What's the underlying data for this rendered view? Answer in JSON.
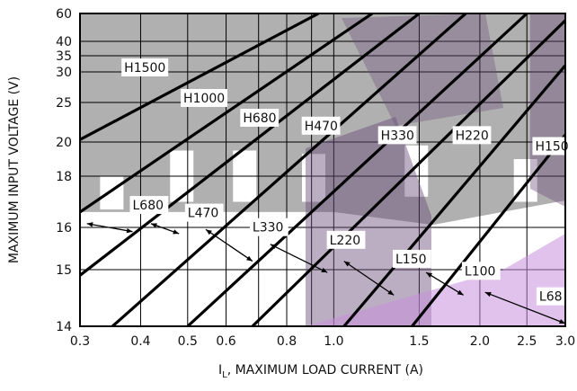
{
  "chart_data": {
    "type": "line",
    "xlabel_prefix": "I",
    "xlabel_sub": "L",
    "xlabel_rest": ", MAXIMUM LOAD CURRENT (A)",
    "ylabel": "MAXIMUM INPUT VOLTAGE (V)",
    "x_scale": "log",
    "y_scale": "custom-nonlinear",
    "xlim": [
      0.3,
      3.0
    ],
    "ylim": [
      14,
      60
    ],
    "x_ticks": [
      {
        "value": 0.3,
        "label": "0.3"
      },
      {
        "value": 0.4,
        "label": "0.4"
      },
      {
        "value": 0.5,
        "label": "0.5"
      },
      {
        "value": 0.6,
        "label": "0.6"
      },
      {
        "value": 0.8,
        "label": "0.8"
      },
      {
        "value": 1.0,
        "label": "1.0"
      },
      {
        "value": 1.5,
        "label": "1.5"
      },
      {
        "value": 2.0,
        "label": "2.0"
      },
      {
        "value": 2.5,
        "label": "2.5"
      },
      {
        "value": 3.0,
        "label": "3.0"
      }
    ],
    "x_minor_grid": [
      0.7,
      0.9
    ],
    "y_ticks": [
      {
        "value": 14,
        "label": "14"
      },
      {
        "value": 15,
        "label": "15"
      },
      {
        "value": 16,
        "label": "16"
      },
      {
        "value": 18,
        "label": "18"
      },
      {
        "value": 20,
        "label": "20"
      },
      {
        "value": 25,
        "label": "25"
      },
      {
        "value": 30,
        "label": "30"
      },
      {
        "value": 35,
        "label": "35"
      },
      {
        "value": 40,
        "label": "40"
      },
      {
        "value": 60,
        "label": "60"
      }
    ],
    "grid": true,
    "shaded_region": {
      "description_value": "H inductor region above boundary",
      "boundary_voltage_left": 16.6
    },
    "series": [
      {
        "name": "H1500",
        "values_xy": [
          [
            0.3,
            20.3
          ],
          [
            0.93,
            60
          ]
        ]
      },
      {
        "name": "H1000",
        "values_xy": [
          [
            0.3,
            16.6
          ],
          [
            1.2,
            60
          ]
        ]
      },
      {
        "name": "H680",
        "values_xy": [
          [
            0.3,
            14.9
          ],
          [
            1.5,
            60
          ]
        ]
      },
      {
        "name": "H470",
        "values_xy": [
          [
            0.35,
            14
          ],
          [
            1.87,
            60
          ]
        ]
      },
      {
        "name": "H330",
        "values_xy": [
          [
            0.5,
            14
          ],
          [
            2.5,
            60
          ]
        ]
      },
      {
        "name": "H220",
        "values_xy": [
          [
            0.68,
            14
          ],
          [
            3.0,
            55
          ]
        ]
      },
      {
        "name": "H150",
        "values_xy": [
          [
            1.05,
            14
          ],
          [
            3.0,
            32
          ]
        ]
      },
      {
        "name": "L68",
        "values_xy": [
          [
            1.45,
            14
          ],
          [
            3.0,
            20.9
          ]
        ]
      }
    ],
    "labels": [
      {
        "text": "H1500",
        "x": 0.37,
        "y": 30
      },
      {
        "text": "H1000",
        "x": 0.49,
        "y": 25
      },
      {
        "text": "H680",
        "x": 0.65,
        "y": 22.5
      },
      {
        "text": "H470",
        "x": 0.87,
        "y": 21.5
      },
      {
        "text": "H330",
        "x": 1.25,
        "y": 20.3
      },
      {
        "text": "H220",
        "x": 1.78,
        "y": 20.3
      },
      {
        "text": "H150",
        "x": 2.6,
        "y": 19.5
      },
      {
        "text": "L680",
        "x": 0.385,
        "y": 16.7
      },
      {
        "text": "L470",
        "x": 0.5,
        "y": 16.4
      },
      {
        "text": "L330",
        "x": 0.68,
        "y": 15.9
      },
      {
        "text": "L220",
        "x": 0.98,
        "y": 15.6
      },
      {
        "text": "L150",
        "x": 1.34,
        "y": 15.15
      },
      {
        "text": "L100",
        "x": 1.86,
        "y": 14.9
      },
      {
        "text": "L68",
        "x": 2.65,
        "y": 14.45
      }
    ],
    "arrows": [
      {
        "from": [
          0.31,
          16.15
        ],
        "to": [
          0.385,
          15.9
        ]
      },
      {
        "from": [
          0.42,
          16.15
        ],
        "to": [
          0.48,
          15.85
        ]
      },
      {
        "from": [
          0.545,
          15.95
        ],
        "to": [
          0.68,
          15.2
        ]
      },
      {
        "from": [
          0.74,
          15.6
        ],
        "to": [
          0.97,
          14.95
        ]
      },
      {
        "from": [
          1.05,
          15.2
        ],
        "to": [
          1.33,
          14.55
        ]
      },
      {
        "from": [
          1.55,
          14.95
        ],
        "to": [
          1.85,
          14.55
        ]
      },
      {
        "from": [
          2.05,
          14.6
        ],
        "to": [
          3.0,
          14.05
        ]
      }
    ]
  },
  "colors": {
    "shade": "#b0b0b0",
    "line": "#000000",
    "watermark_dark": "#6a4c78",
    "watermark_light": "#c78fdc"
  }
}
